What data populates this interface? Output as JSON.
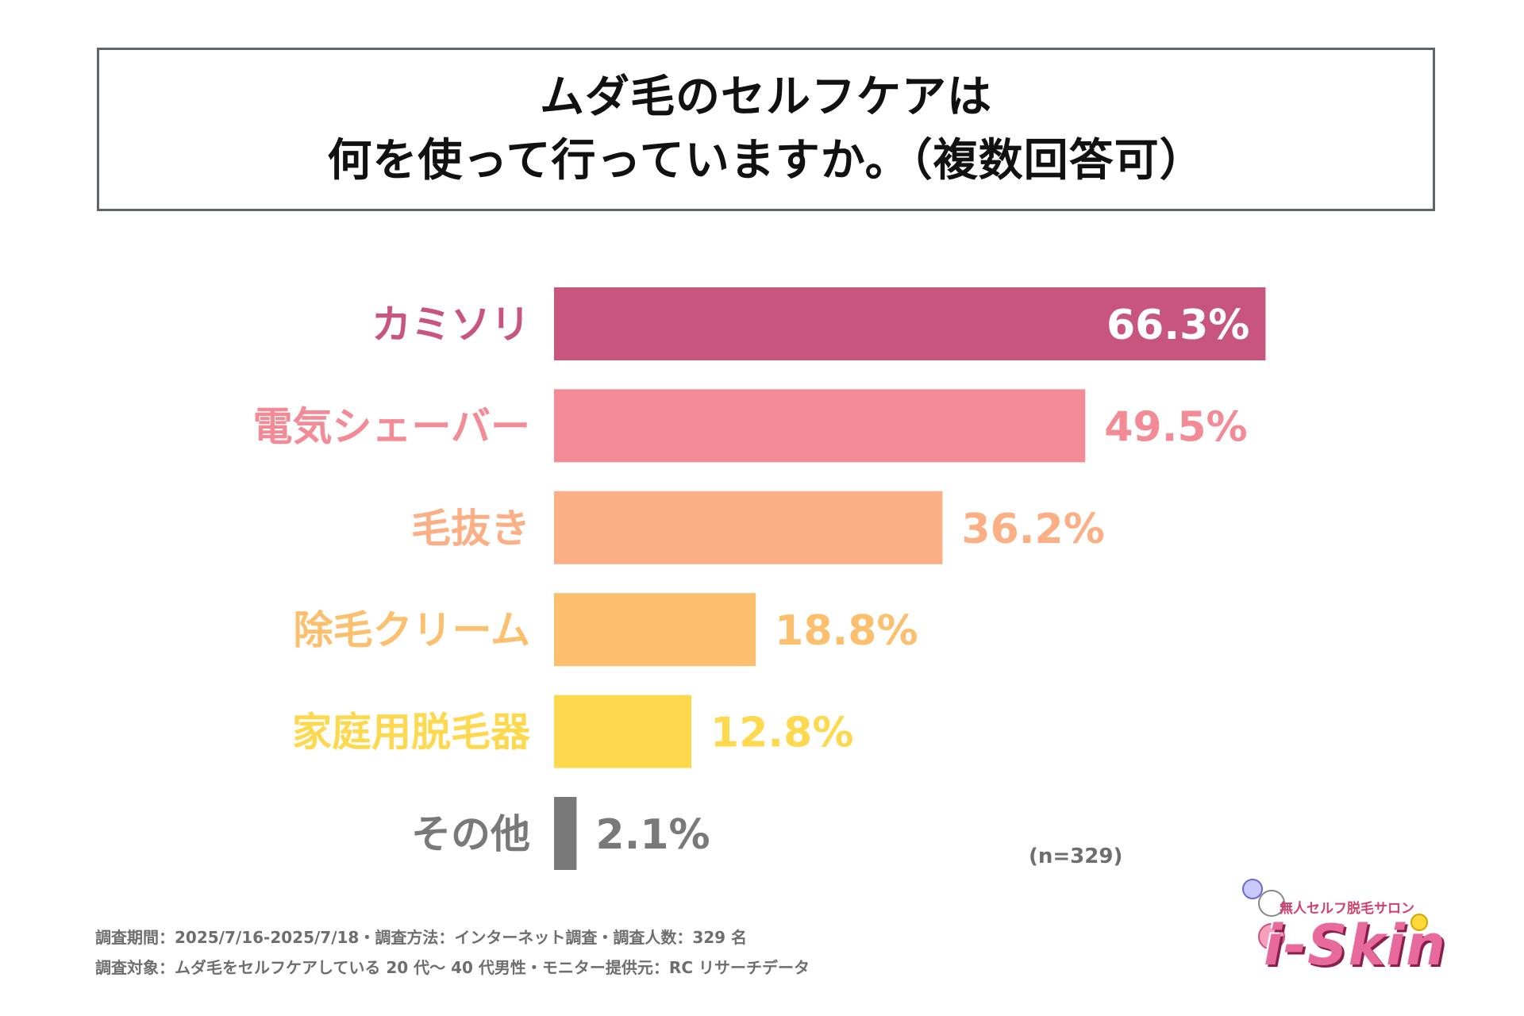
{
  "title": {
    "line1": "ムダ毛のセルフケアは",
    "line2": "何を使って行っていますか。（複数回答可）"
  },
  "chart_data": {
    "type": "bar",
    "orientation": "horizontal",
    "categories": [
      "カミソリ",
      "電気シェーバー",
      "毛抜き",
      "除毛クリーム",
      "家庭用脱毛器",
      "その他"
    ],
    "values": [
      66.3,
      49.5,
      36.2,
      18.8,
      12.8,
      2.1
    ],
    "value_labels": [
      "66.3%",
      "49.5%",
      "36.2%",
      "18.8%",
      "12.8%",
      "2.1%"
    ],
    "colors": [
      "#c8557d",
      "#f28b96",
      "#fcaf85",
      "#fcbf6e",
      "#fed94f",
      "#797979"
    ],
    "xlim": [
      0,
      100
    ],
    "unit": "%"
  },
  "sample_size": "(n=329)",
  "footer": {
    "line1": "調査期間：2025/7/16-2025/7/18・調査方法：インターネット調査・調査人数：329 名",
    "line2": "調査対象：ムダ毛をセルフケアしている 20 代〜 40 代男性・モニター提供元：RC リサーチデータ"
  },
  "logo": {
    "subtitle": "無人セルフ脱毛サロン",
    "name": "i-Skin"
  }
}
